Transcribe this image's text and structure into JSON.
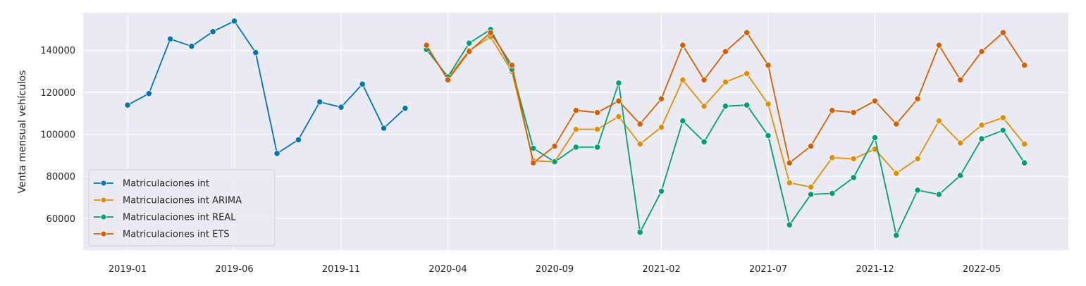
{
  "chart_data": {
    "type": "line",
    "title": "",
    "xlabel": "",
    "ylabel": "Venta mensual vehículos",
    "x_ticks": [
      "2019-01",
      "2019-06",
      "2019-11",
      "2020-04",
      "2020-09",
      "2021-02",
      "2021-07",
      "2021-12",
      "2022-05"
    ],
    "y_ticks": [
      60000,
      80000,
      100000,
      120000,
      140000
    ],
    "ylim": [
      45000,
      158000
    ],
    "xlim": [
      "2018-10",
      "2022-09"
    ],
    "grid": true,
    "legend_position": "lower-left",
    "series": [
      {
        "name": "Matriculaciones int",
        "color": "#0173b2",
        "x": [
          "2019-01",
          "2019-02",
          "2019-03",
          "2019-04",
          "2019-05",
          "2019-06",
          "2019-07",
          "2019-08",
          "2019-09",
          "2019-10",
          "2019-11",
          "2019-12",
          "2020-01",
          "2020-02"
        ],
        "values": [
          114000,
          119500,
          145500,
          142000,
          149000,
          154000,
          139000,
          91000,
          97500,
          115500,
          113000,
          124000,
          103000,
          112500
        ]
      },
      {
        "name": "Matriculaciones int ARIMA",
        "color": "#de8f05",
        "x": [
          "2020-03",
          "2020-04",
          "2020-05",
          "2020-06",
          "2020-07",
          "2020-08",
          "2020-09",
          "2020-10",
          "2020-11",
          "2020-12",
          "2021-01",
          "2021-02",
          "2021-03",
          "2021-04",
          "2021-05",
          "2021-06",
          "2021-07",
          "2021-08",
          "2021-09",
          "2021-10",
          "2021-11",
          "2021-12",
          "2022-01",
          "2022-02",
          "2022-03",
          "2022-04",
          "2022-05",
          "2022-06",
          "2022-07"
        ],
        "values": [
          141000,
          127000,
          140000,
          146500,
          130000,
          87500,
          87000,
          102500,
          102500,
          108500,
          95500,
          103500,
          126000,
          113500,
          125000,
          129000,
          114500,
          77000,
          75000,
          89000,
          88500,
          93000,
          81500,
          88500,
          106500,
          96000,
          104500,
          108000,
          95500
        ]
      },
      {
        "name": "Matriculaciones int REAL",
        "color": "#029e73",
        "x": [
          "2020-03",
          "2020-04",
          "2020-05",
          "2020-06",
          "2020-07",
          "2020-08",
          "2020-09",
          "2020-10",
          "2020-11",
          "2020-12",
          "2021-01",
          "2021-02",
          "2021-03",
          "2021-04",
          "2021-05",
          "2021-06",
          "2021-07",
          "2021-08",
          "2021-09",
          "2021-10",
          "2021-11",
          "2021-12",
          "2022-01",
          "2022-02",
          "2022-03",
          "2022-04",
          "2022-05",
          "2022-06",
          "2022-07"
        ],
        "values": [
          140500,
          127500,
          143500,
          150000,
          131000,
          93500,
          87000,
          94000,
          94000,
          124500,
          53500,
          73000,
          106500,
          96500,
          113500,
          114000,
          99500,
          57000,
          71500,
          72000,
          79500,
          98500,
          52000,
          73500,
          71500,
          80500,
          98000,
          102000,
          86500
        ]
      },
      {
        "name": "Matriculaciones int ETS",
        "color": "#d55e00",
        "x": [
          "2020-03",
          "2020-04",
          "2020-05",
          "2020-06",
          "2020-07",
          "2020-08",
          "2020-09",
          "2020-10",
          "2020-11",
          "2020-12",
          "2021-01",
          "2021-02",
          "2021-03",
          "2021-04",
          "2021-05",
          "2021-06",
          "2021-07",
          "2021-08",
          "2021-09",
          "2021-10",
          "2021-11",
          "2021-12",
          "2022-01",
          "2022-02",
          "2022-03",
          "2022-04",
          "2022-05",
          "2022-06",
          "2022-07"
        ],
        "values": [
          142500,
          126000,
          139500,
          148500,
          133000,
          86500,
          94500,
          111500,
          110500,
          116000,
          105000,
          117000,
          142500,
          126000,
          139500,
          148500,
          133000,
          86500,
          94500,
          111500,
          110500,
          116000,
          105000,
          117000,
          142500,
          126000,
          139500,
          148500,
          133000
        ]
      }
    ]
  }
}
